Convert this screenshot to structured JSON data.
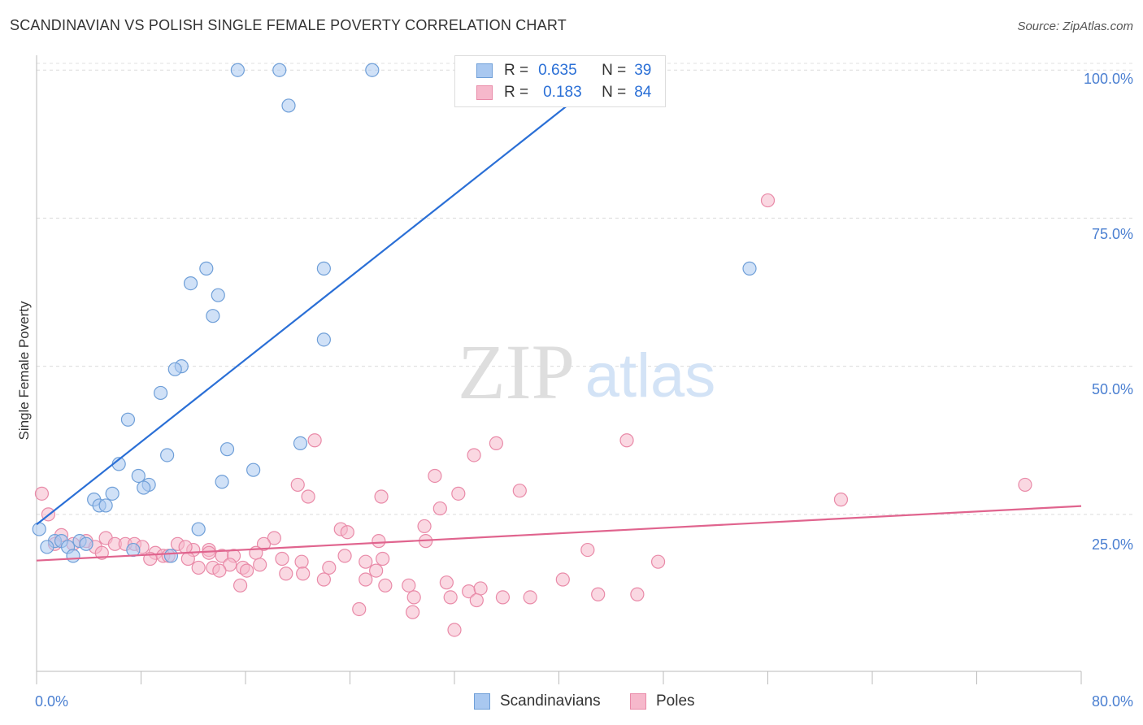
{
  "title": "SCANDINAVIAN VS POLISH SINGLE FEMALE POVERTY CORRELATION CHART",
  "source": "Source: ZipAtlas.com",
  "watermark": {
    "zip": "ZIP",
    "atlas": "atlas"
  },
  "legend": {
    "r_label": "R =",
    "n_label": "N =",
    "rows": [
      {
        "r": "0.635",
        "n": "39"
      },
      {
        "r": "0.183",
        "n": "84"
      }
    ]
  },
  "bottom_legend": [
    "Scandinavians",
    "Poles"
  ],
  "colors": {
    "scandinavians_fill": "#a9c8f0",
    "scandinavians_stroke": "#6f9fd8",
    "scandinavians_line": "#2a6fd6",
    "poles_fill": "#f6b8cb",
    "poles_stroke": "#e98aa8",
    "poles_line": "#e0648e",
    "tick_text": "#4a7fd1"
  },
  "chart_data": {
    "type": "scatter",
    "title": "SCANDINAVIAN VS POLISH SINGLE FEMALE POVERTY CORRELATION CHART",
    "xlabel": "",
    "ylabel": "Single Female Poverty",
    "x_tick_labels": [
      "0.0%",
      "80.0%"
    ],
    "y_tick_labels": [
      "100.0%",
      "75.0%",
      "50.0%",
      "25.0%"
    ],
    "xlim": [
      0,
      80
    ],
    "ylim": [
      -1.5,
      102.5
    ],
    "grid": true,
    "legend_position": "top-center",
    "series": [
      {
        "name": "Scandinavians",
        "r": 0.635,
        "n": 39,
        "trend": {
          "x": [
            0,
            45
          ],
          "y": [
            23.3,
            101.6
          ]
        },
        "points": [
          [
            15.4,
            100
          ],
          [
            18.6,
            100
          ],
          [
            25.7,
            100
          ],
          [
            19.3,
            94
          ],
          [
            54.6,
            66.5
          ],
          [
            22.0,
            66.5
          ],
          [
            13.0,
            66.5
          ],
          [
            11.8,
            64
          ],
          [
            13.9,
            62
          ],
          [
            13.5,
            58.5
          ],
          [
            22.0,
            54.5
          ],
          [
            11.1,
            50
          ],
          [
            10.6,
            49.5
          ],
          [
            9.5,
            45.5
          ],
          [
            7.0,
            41
          ],
          [
            20.2,
            37
          ],
          [
            14.6,
            36
          ],
          [
            10.0,
            35
          ],
          [
            6.3,
            33.5
          ],
          [
            16.6,
            32.5
          ],
          [
            7.8,
            31.5
          ],
          [
            8.6,
            30
          ],
          [
            14.2,
            30.5
          ],
          [
            8.2,
            29.5
          ],
          [
            5.8,
            28.5
          ],
          [
            4.4,
            27.5
          ],
          [
            4.8,
            26.5
          ],
          [
            5.3,
            26.5
          ],
          [
            12.4,
            22.5
          ],
          [
            1.4,
            20.5
          ],
          [
            1.9,
            20.5
          ],
          [
            3.3,
            20.5
          ],
          [
            3.8,
            20
          ],
          [
            2.4,
            19.5
          ],
          [
            0.8,
            19.5
          ],
          [
            7.4,
            19
          ],
          [
            10.3,
            18
          ],
          [
            2.8,
            18
          ],
          [
            0.2,
            22.5
          ]
        ]
      },
      {
        "name": "Poles",
        "r": 0.183,
        "n": 84,
        "trend": {
          "x": [
            0,
            80
          ],
          "y": [
            17.2,
            26.4
          ]
        },
        "points": [
          [
            56.0,
            78
          ],
          [
            45.2,
            37.5
          ],
          [
            21.3,
            37.5
          ],
          [
            35.2,
            37
          ],
          [
            33.5,
            35
          ],
          [
            30.5,
            31.5
          ],
          [
            20.0,
            30
          ],
          [
            75.7,
            30
          ],
          [
            20.8,
            28
          ],
          [
            26.4,
            28
          ],
          [
            32.3,
            28.5
          ],
          [
            37.0,
            29
          ],
          [
            61.6,
            27.5
          ],
          [
            30.9,
            26
          ],
          [
            0.4,
            28.5
          ],
          [
            0.9,
            25
          ],
          [
            29.7,
            23
          ],
          [
            23.3,
            22.5
          ],
          [
            23.8,
            22
          ],
          [
            1.9,
            21.5
          ],
          [
            5.3,
            21
          ],
          [
            18.2,
            21
          ],
          [
            1.4,
            20
          ],
          [
            2.8,
            20
          ],
          [
            3.8,
            20.5
          ],
          [
            6.0,
            20
          ],
          [
            6.8,
            20
          ],
          [
            7.5,
            20
          ],
          [
            4.5,
            19.5
          ],
          [
            8.1,
            19.5
          ],
          [
            17.4,
            20
          ],
          [
            26.2,
            20.5
          ],
          [
            5.0,
            18.5
          ],
          [
            10.8,
            20
          ],
          [
            29.8,
            20.5
          ],
          [
            12.0,
            19
          ],
          [
            9.1,
            18.5
          ],
          [
            9.7,
            18
          ],
          [
            11.4,
            19.5
          ],
          [
            13.2,
            19
          ],
          [
            14.2,
            18
          ],
          [
            15.1,
            18
          ],
          [
            16.8,
            18.5
          ],
          [
            17.1,
            16.5
          ],
          [
            8.7,
            17.5
          ],
          [
            10.1,
            18
          ],
          [
            11.6,
            17.5
          ],
          [
            13.2,
            18.5
          ],
          [
            14.8,
            16.5
          ],
          [
            18.8,
            17.5
          ],
          [
            20.3,
            17
          ],
          [
            23.6,
            18
          ],
          [
            25.2,
            17
          ],
          [
            26.5,
            17.5
          ],
          [
            42.2,
            19
          ],
          [
            47.6,
            17
          ],
          [
            12.4,
            16
          ],
          [
            13.5,
            16
          ],
          [
            14.0,
            15.5
          ],
          [
            15.8,
            16
          ],
          [
            16.1,
            15.5
          ],
          [
            19.1,
            15
          ],
          [
            20.4,
            15
          ],
          [
            22.4,
            16
          ],
          [
            26.0,
            15.5
          ],
          [
            22.0,
            14
          ],
          [
            25.2,
            14
          ],
          [
            26.7,
            13
          ],
          [
            28.5,
            13
          ],
          [
            31.4,
            13.5
          ],
          [
            40.3,
            14
          ],
          [
            15.6,
            13
          ],
          [
            33.1,
            12
          ],
          [
            34.0,
            12.5
          ],
          [
            28.9,
            11
          ],
          [
            31.7,
            11
          ],
          [
            35.7,
            11
          ],
          [
            33.7,
            10.5
          ],
          [
            37.8,
            11
          ],
          [
            43.0,
            11.5
          ],
          [
            46.0,
            11.5
          ],
          [
            24.7,
            9
          ],
          [
            28.8,
            8.5
          ],
          [
            32.0,
            5.5
          ]
        ]
      }
    ]
  }
}
